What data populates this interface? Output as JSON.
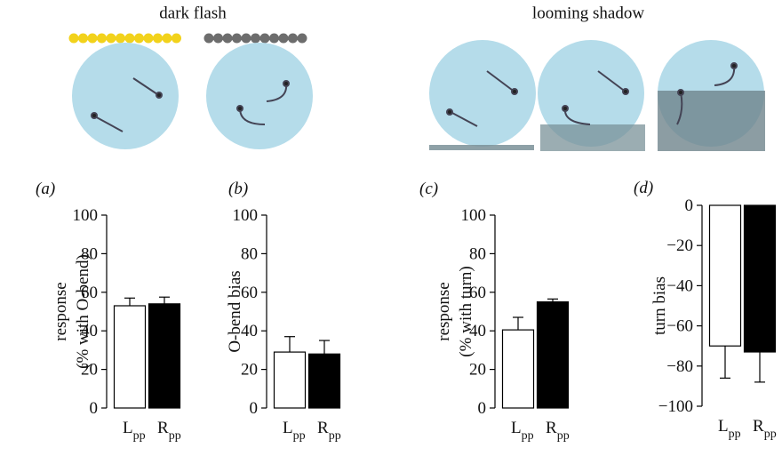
{
  "illustration": {
    "labels": [
      "dark flash",
      "looming shadow"
    ]
  },
  "chart_data": [
    {
      "type": "bar",
      "panel": "(a)",
      "ylabel": [
        "response",
        "(% with O-bend)"
      ],
      "categories": [
        "Lpp",
        "Rpp"
      ],
      "values": [
        53,
        54
      ],
      "errors": [
        4,
        3.5
      ],
      "colors": [
        "#ffffff",
        "#000000"
      ],
      "ylim": [
        0,
        100
      ],
      "yticks": [
        0,
        20,
        40,
        60,
        80,
        100
      ]
    },
    {
      "type": "bar",
      "panel": "(b)",
      "ylabel": [
        "O-bend bias"
      ],
      "categories": [
        "Lpp",
        "Rpp"
      ],
      "values": [
        29,
        28
      ],
      "errors": [
        8,
        7
      ],
      "colors": [
        "#ffffff",
        "#000000"
      ],
      "ylim": [
        0,
        100
      ],
      "yticks": [
        0,
        20,
        40,
        60,
        80,
        100
      ]
    },
    {
      "type": "bar",
      "panel": "(c)",
      "ylabel": [
        "response",
        "(% with turn)"
      ],
      "categories": [
        "Lpp",
        "Rpp"
      ],
      "values": [
        40.5,
        55
      ],
      "errors": [
        6.5,
        1.5
      ],
      "colors": [
        "#ffffff",
        "#000000"
      ],
      "ylim": [
        0,
        100
      ],
      "yticks": [
        0,
        20,
        40,
        60,
        80,
        100
      ]
    },
    {
      "type": "bar",
      "panel": "(d)",
      "ylabel": [
        "turn bias"
      ],
      "categories": [
        "Lpp",
        "Rpp"
      ],
      "values": [
        -70,
        -73
      ],
      "errors": [
        16,
        15
      ],
      "colors": [
        "#ffffff",
        "#000000"
      ],
      "ylim": [
        -100,
        0
      ],
      "yticks": [
        {
          "value": -100,
          "label": "−100"
        },
        {
          "value": -80,
          "label": "−80"
        },
        {
          "value": -60,
          "label": "−60"
        },
        {
          "value": -40,
          "label": "−40"
        },
        {
          "value": -20,
          "label": "−20"
        },
        0
      ]
    }
  ]
}
